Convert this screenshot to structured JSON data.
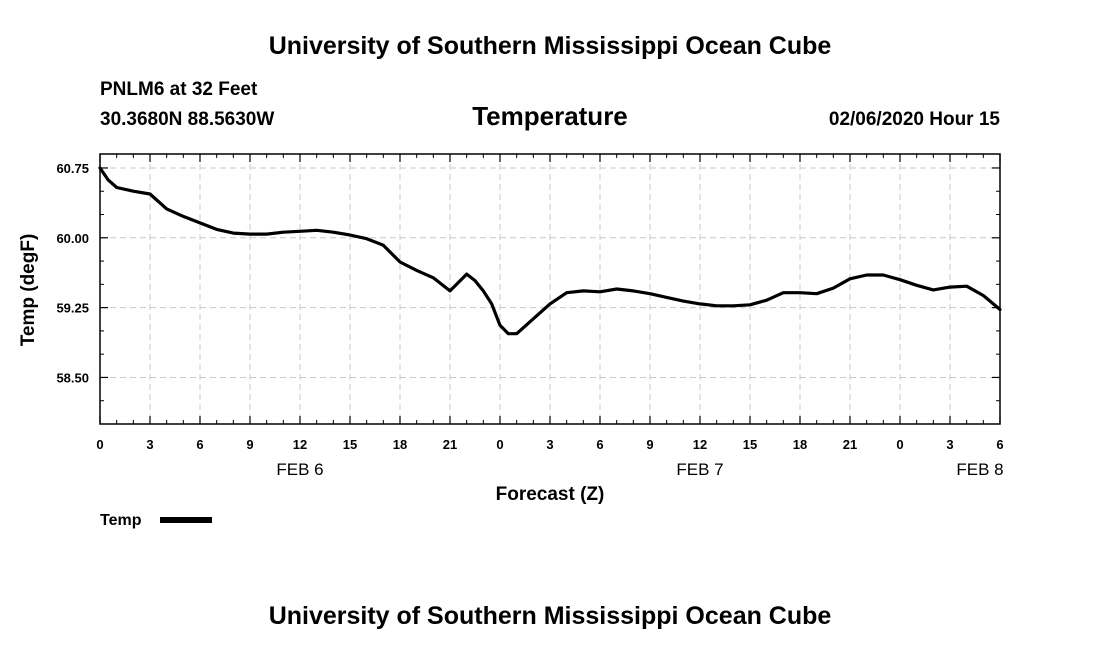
{
  "chart_data": {
    "type": "line",
    "header_title": "University of Southern Mississippi Ocean Cube",
    "footer_title": "University of Southern Mississippi Ocean Cube",
    "station": "PNLM6 at 32 Feet",
    "coords": "30.3680N 88.5630W",
    "title": "Temperature",
    "datetime": "02/06/2020 Hour 15",
    "xlabel": "Forecast (Z)",
    "ylabel": "Temp (degF)",
    "xlim": [
      0,
      54
    ],
    "ylim": [
      58.0,
      60.9
    ],
    "x_ticks": [
      {
        "x": 0,
        "label": "0"
      },
      {
        "x": 3,
        "label": "3"
      },
      {
        "x": 6,
        "label": "6"
      },
      {
        "x": 9,
        "label": "9"
      },
      {
        "x": 12,
        "label": "12"
      },
      {
        "x": 15,
        "label": "15"
      },
      {
        "x": 18,
        "label": "18"
      },
      {
        "x": 21,
        "label": "21"
      },
      {
        "x": 24,
        "label": "0"
      },
      {
        "x": 27,
        "label": "3"
      },
      {
        "x": 30,
        "label": "6"
      },
      {
        "x": 33,
        "label": "9"
      },
      {
        "x": 36,
        "label": "12"
      },
      {
        "x": 39,
        "label": "15"
      },
      {
        "x": 42,
        "label": "18"
      },
      {
        "x": 45,
        "label": "21"
      },
      {
        "x": 48,
        "label": "0"
      },
      {
        "x": 51,
        "label": "3"
      },
      {
        "x": 54,
        "label": "6"
      }
    ],
    "y_ticks": [
      {
        "y": 60.75,
        "label": "60.75"
      },
      {
        "y": 60.0,
        "label": "60.00"
      },
      {
        "y": 59.25,
        "label": "59.25"
      },
      {
        "y": 58.5,
        "label": "58.50"
      }
    ],
    "date_labels": [
      {
        "x": 12,
        "label": "FEB 6"
      },
      {
        "x": 36,
        "label": "FEB 7"
      },
      {
        "x": 52.8,
        "label": "FEB 8"
      }
    ],
    "grid": true,
    "legend": {
      "position": "bottom-left",
      "entries": [
        {
          "name": "Temp",
          "color": "#000000"
        }
      ]
    },
    "series": [
      {
        "name": "Temp",
        "color": "#000000",
        "x": [
          0,
          0.5,
          1,
          2,
          3,
          4,
          5,
          6,
          7,
          8,
          9,
          10,
          11,
          12,
          13,
          14,
          15,
          16,
          17,
          18,
          19,
          20,
          21,
          22,
          22.5,
          23,
          23.5,
          24,
          24.5,
          25,
          26,
          27,
          28,
          29,
          30,
          31,
          32,
          33,
          34,
          35,
          36,
          37,
          38,
          39,
          40,
          41,
          42,
          43,
          44,
          45,
          46,
          47,
          48,
          49,
          50,
          51,
          52,
          53,
          54
        ],
        "values": [
          60.75,
          60.62,
          60.54,
          60.5,
          60.47,
          60.31,
          60.23,
          60.16,
          60.09,
          60.05,
          60.04,
          60.04,
          60.06,
          60.07,
          60.08,
          60.06,
          60.03,
          59.99,
          59.92,
          59.74,
          59.65,
          59.57,
          59.43,
          59.61,
          59.54,
          59.43,
          59.29,
          59.06,
          58.97,
          58.97,
          59.13,
          59.29,
          59.41,
          59.43,
          59.42,
          59.45,
          59.43,
          59.4,
          59.36,
          59.32,
          59.29,
          59.27,
          59.27,
          59.28,
          59.33,
          59.41,
          59.41,
          59.4,
          59.46,
          59.56,
          59.6,
          59.6,
          59.55,
          59.49,
          59.44,
          59.47,
          59.48,
          59.38,
          59.23
        ]
      }
    ]
  }
}
